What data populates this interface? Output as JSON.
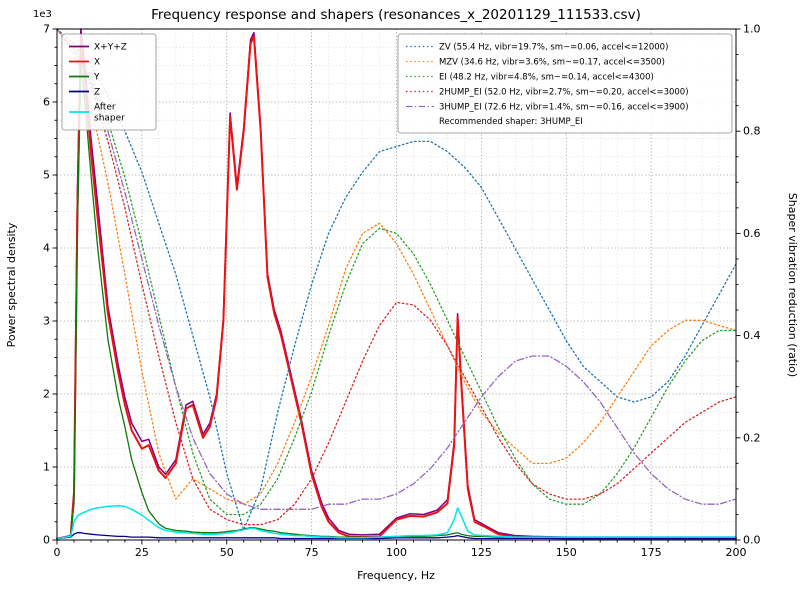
{
  "chart_data": {
    "type": "line",
    "title": "Frequency response and shapers (resonances_x_20201129_111533.csv)",
    "xlabel": "Frequency, Hz",
    "ylabel_left": "Power spectral density",
    "ylabel_right": "Shaper vibration reduction (ratio)",
    "y_offset_text": "1e3",
    "xlim": [
      0,
      200
    ],
    "x_major_ticks": [
      0,
      25,
      50,
      75,
      100,
      125,
      150,
      175,
      200
    ],
    "x_minor_step": 5,
    "ylim_left": [
      0,
      7
    ],
    "y_left_ticks": [
      0,
      1,
      2,
      3,
      4,
      5,
      6,
      7
    ],
    "y_left_minor_step": 0.25,
    "ylim_right": [
      0,
      1
    ],
    "y_right_ticks": [
      0.0,
      0.2,
      0.4,
      0.6,
      0.8,
      1.0
    ],
    "y_right_minor_step": 0.05,
    "grid": {
      "major_color": "#9a9a9a",
      "minor_color": "#dcdcdc"
    },
    "psd_units": "1e3",
    "psd_x": [
      0,
      4,
      5,
      6,
      7,
      8,
      10,
      12,
      15,
      18,
      20,
      22,
      25,
      27,
      30,
      32,
      35,
      38,
      40,
      43,
      45,
      47,
      49,
      51,
      53,
      55,
      57,
      58,
      60,
      62,
      64,
      66,
      68,
      70,
      72,
      75,
      78,
      80,
      83,
      86,
      90,
      95,
      100,
      104,
      108,
      112,
      115,
      117,
      118,
      119,
      121,
      123,
      126,
      130,
      135,
      140,
      150,
      160,
      170,
      180,
      190,
      200
    ],
    "psd_series": [
      {
        "name": "X+Y+Z",
        "legend_label": "X+Y+Z",
        "color": "#800080",
        "width": 1.5,
        "y": [
          0.02,
          0.06,
          0.7,
          4.8,
          7.0,
          6.6,
          5.5,
          4.6,
          3.2,
          2.4,
          1.95,
          1.6,
          1.35,
          1.38,
          1.0,
          0.9,
          1.1,
          1.85,
          1.9,
          1.45,
          1.6,
          2.0,
          3.05,
          5.85,
          4.85,
          5.65,
          6.85,
          6.95,
          5.65,
          3.65,
          3.15,
          2.85,
          2.45,
          2.05,
          1.65,
          0.95,
          0.5,
          0.3,
          0.13,
          0.08,
          0.07,
          0.08,
          0.3,
          0.36,
          0.35,
          0.41,
          0.55,
          1.35,
          3.1,
          2.25,
          0.75,
          0.28,
          0.2,
          0.1,
          0.06,
          0.05,
          0.04,
          0.04,
          0.04,
          0.04,
          0.04,
          0.04
        ]
      },
      {
        "name": "X",
        "legend_label": "X",
        "color": "#ee1111",
        "width": 2.0,
        "y": [
          0.02,
          0.05,
          0.6,
          4.5,
          6.85,
          6.4,
          5.3,
          4.4,
          3.1,
          2.3,
          1.85,
          1.5,
          1.25,
          1.3,
          0.95,
          0.85,
          1.05,
          1.8,
          1.85,
          1.4,
          1.55,
          1.95,
          3.0,
          5.8,
          4.8,
          5.6,
          6.8,
          6.9,
          5.6,
          3.6,
          3.1,
          2.8,
          2.4,
          2.0,
          1.6,
          0.9,
          0.45,
          0.25,
          0.1,
          0.05,
          0.04,
          0.05,
          0.28,
          0.33,
          0.32,
          0.38,
          0.5,
          1.3,
          3.05,
          2.2,
          0.7,
          0.25,
          0.18,
          0.08,
          0.04,
          0.03,
          0.02,
          0.02,
          0.02,
          0.02,
          0.02,
          0.02
        ]
      },
      {
        "name": "Y",
        "legend_label": "Y",
        "color": "#0b7a0b",
        "width": 1.3,
        "y": [
          0.02,
          0.05,
          0.5,
          4.2,
          6.5,
          6.1,
          5.0,
          4.0,
          2.75,
          1.95,
          1.55,
          1.1,
          0.65,
          0.4,
          0.22,
          0.16,
          0.13,
          0.12,
          0.11,
          0.1,
          0.1,
          0.1,
          0.11,
          0.12,
          0.13,
          0.15,
          0.17,
          0.17,
          0.15,
          0.13,
          0.12,
          0.1,
          0.09,
          0.08,
          0.07,
          0.06,
          0.05,
          0.05,
          0.04,
          0.04,
          0.04,
          0.04,
          0.05,
          0.05,
          0.05,
          0.06,
          0.07,
          0.09,
          0.1,
          0.08,
          0.06,
          0.05,
          0.05,
          0.04,
          0.04,
          0.03,
          0.03,
          0.03,
          0.03,
          0.03,
          0.03,
          0.03
        ]
      },
      {
        "name": "Z",
        "legend_label": "Z",
        "color": "#00008b",
        "width": 1.3,
        "y": [
          0.02,
          0.04,
          0.08,
          0.1,
          0.1,
          0.09,
          0.08,
          0.07,
          0.06,
          0.05,
          0.05,
          0.04,
          0.04,
          0.04,
          0.03,
          0.03,
          0.03,
          0.03,
          0.03,
          0.03,
          0.03,
          0.03,
          0.03,
          0.03,
          0.03,
          0.03,
          0.03,
          0.03,
          0.03,
          0.03,
          0.03,
          0.02,
          0.02,
          0.02,
          0.02,
          0.02,
          0.02,
          0.02,
          0.02,
          0.02,
          0.02,
          0.02,
          0.03,
          0.03,
          0.03,
          0.03,
          0.04,
          0.05,
          0.06,
          0.05,
          0.03,
          0.02,
          0.02,
          0.02,
          0.02,
          0.02,
          0.02,
          0.02,
          0.02,
          0.02,
          0.02,
          0.02
        ]
      },
      {
        "name": "After shaper",
        "legend_label": "After\nshaper",
        "color": "#00e5ee",
        "width": 1.5,
        "on_top": true,
        "y": [
          0.02,
          0.05,
          0.25,
          0.33,
          0.36,
          0.38,
          0.42,
          0.44,
          0.46,
          0.47,
          0.46,
          0.42,
          0.34,
          0.27,
          0.17,
          0.13,
          0.11,
          0.1,
          0.09,
          0.08,
          0.08,
          0.08,
          0.09,
          0.1,
          0.12,
          0.14,
          0.16,
          0.16,
          0.13,
          0.11,
          0.09,
          0.08,
          0.07,
          0.06,
          0.06,
          0.05,
          0.04,
          0.04,
          0.03,
          0.03,
          0.03,
          0.04,
          0.05,
          0.06,
          0.06,
          0.07,
          0.1,
          0.28,
          0.44,
          0.34,
          0.12,
          0.07,
          0.06,
          0.05,
          0.04,
          0.04,
          0.04,
          0.04,
          0.04,
          0.04,
          0.04,
          0.04
        ]
      }
    ],
    "shaper_x": [
      0,
      5,
      10,
      15,
      20,
      25,
      30,
      35,
      40,
      45,
      50,
      55,
      60,
      65,
      70,
      75,
      80,
      85,
      90,
      95,
      100,
      105,
      110,
      115,
      120,
      125,
      130,
      135,
      140,
      145,
      150,
      155,
      160,
      165,
      170,
      175,
      180,
      185,
      190,
      195,
      200
    ],
    "shaper_series": [
      {
        "name": "ZV",
        "label": "ZV (55.4 Hz, vibr=19.7%, sm~=0.06, accel<=12000)",
        "color": "#1f77b4",
        "dash": "dotted",
        "y": [
          1.0,
          0.97,
          0.93,
          0.87,
          0.8,
          0.72,
          0.62,
          0.52,
          0.4,
          0.28,
          0.13,
          0.02,
          0.1,
          0.25,
          0.38,
          0.5,
          0.6,
          0.67,
          0.72,
          0.76,
          0.77,
          0.78,
          0.78,
          0.76,
          0.73,
          0.69,
          0.63,
          0.57,
          0.51,
          0.45,
          0.39,
          0.34,
          0.31,
          0.28,
          0.27,
          0.28,
          0.31,
          0.36,
          0.42,
          0.48,
          0.54
        ]
      },
      {
        "name": "MZV",
        "label": "MZV (34.6 Hz, vibr=3.6%, sm~=0.17, accel<=3500)",
        "color": "#ff7f0e",
        "dash": "dotted",
        "y": [
          1.0,
          0.95,
          0.85,
          0.7,
          0.52,
          0.33,
          0.17,
          0.08,
          0.12,
          0.1,
          0.08,
          0.07,
          0.09,
          0.15,
          0.23,
          0.32,
          0.42,
          0.53,
          0.6,
          0.62,
          0.58,
          0.52,
          0.45,
          0.38,
          0.31,
          0.25,
          0.21,
          0.18,
          0.15,
          0.15,
          0.16,
          0.19,
          0.23,
          0.28,
          0.33,
          0.38,
          0.41,
          0.43,
          0.43,
          0.42,
          0.41
        ]
      },
      {
        "name": "EI",
        "label": "EI (48.2 Hz, vibr=4.8%, sm~=0.14, accel<=4300)",
        "color": "#2ca02c",
        "dash": "dotted",
        "y": [
          1.0,
          0.97,
          0.91,
          0.82,
          0.71,
          0.58,
          0.44,
          0.3,
          0.17,
          0.08,
          0.05,
          0.05,
          0.07,
          0.12,
          0.2,
          0.29,
          0.4,
          0.5,
          0.58,
          0.61,
          0.6,
          0.56,
          0.5,
          0.43,
          0.36,
          0.29,
          0.22,
          0.16,
          0.11,
          0.08,
          0.07,
          0.07,
          0.09,
          0.13,
          0.18,
          0.24,
          0.3,
          0.35,
          0.39,
          0.41,
          0.41
        ]
      },
      {
        "name": "2HUMP_EI",
        "label": "2HUMP_EI (52.0 Hz, vibr=2.7%, sm~=0.20, accel<=3000)",
        "color": "#d62728",
        "dash": "dotted",
        "y": [
          1.0,
          0.96,
          0.89,
          0.78,
          0.65,
          0.5,
          0.36,
          0.23,
          0.12,
          0.06,
          0.04,
          0.03,
          0.03,
          0.04,
          0.07,
          0.12,
          0.19,
          0.27,
          0.35,
          0.42,
          0.465,
          0.46,
          0.43,
          0.38,
          0.32,
          0.26,
          0.2,
          0.15,
          0.11,
          0.09,
          0.08,
          0.08,
          0.09,
          0.11,
          0.14,
          0.17,
          0.2,
          0.23,
          0.25,
          0.27,
          0.28
        ]
      },
      {
        "name": "3HUMP_EI",
        "label": "3HUMP_EI (72.6 Hz, vibr=1.4%, sm~=0.16, accel<=3900)",
        "color": "#9467bd",
        "dash": "dashdot",
        "y": [
          1.0,
          0.96,
          0.9,
          0.8,
          0.68,
          0.55,
          0.42,
          0.3,
          0.2,
          0.13,
          0.09,
          0.07,
          0.06,
          0.06,
          0.06,
          0.06,
          0.07,
          0.07,
          0.08,
          0.08,
          0.09,
          0.11,
          0.14,
          0.18,
          0.23,
          0.28,
          0.32,
          0.35,
          0.36,
          0.36,
          0.34,
          0.31,
          0.27,
          0.22,
          0.17,
          0.13,
          0.1,
          0.08,
          0.07,
          0.07,
          0.08
        ]
      }
    ],
    "recommended_label": "Recommended shaper: 3HUMP_EI"
  }
}
